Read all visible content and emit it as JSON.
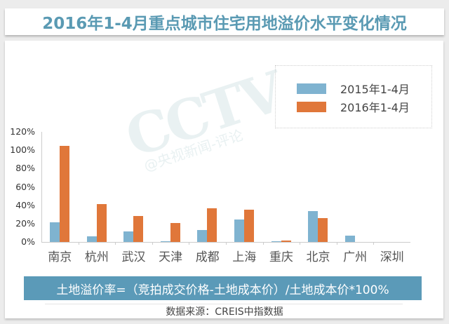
{
  "title": "2016年1-4月重点城市住宅用地溢价水平变化情况",
  "watermark": {
    "big": "CCTV",
    "small": "@央视新闻-评论"
  },
  "legend": [
    {
      "label": "2015年1-4月",
      "color": "#7fb3d0"
    },
    {
      "label": "2016年1-4月",
      "color": "#e0773a"
    }
  ],
  "yticks": [
    "120%",
    "100%",
    "80%",
    "60%",
    "40%",
    "20%",
    "0%"
  ],
  "formula": "土地溢价率=（竞拍成交价格-土地成本价）/土地成本价*100%",
  "source": "数据来源：CREIS中指数据",
  "chart_data": {
    "type": "bar",
    "title": "2016年1-4月重点城市住宅用地溢价水平变化情况",
    "xlabel": "",
    "ylabel": "土地溢价率",
    "categories": [
      "南京",
      "杭州",
      "武汉",
      "天津",
      "成都",
      "上海",
      "重庆",
      "北京",
      "广州",
      "深圳"
    ],
    "series": [
      {
        "name": "2015年1-4月",
        "color": "#7fb3d0",
        "values": [
          21.5,
          6,
          11.5,
          1,
          13,
          24.5,
          0.5,
          34,
          6.5,
          0
        ]
      },
      {
        "name": "2016年1-4月",
        "color": "#e0773a",
        "values": [
          105,
          41,
          28,
          20.5,
          37,
          35,
          1.5,
          26,
          0,
          0
        ]
      }
    ],
    "ylim": [
      0,
      120
    ],
    "yticks": [
      "0%",
      "20%",
      "40%",
      "60%",
      "80%",
      "100%",
      "120%"
    ],
    "grid": false,
    "legend_position": "upper right"
  }
}
